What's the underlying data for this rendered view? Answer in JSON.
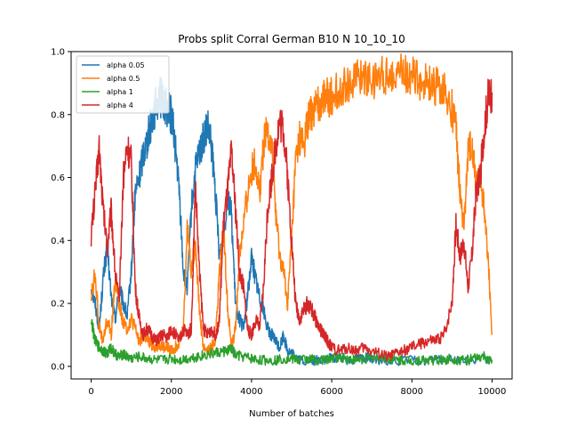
{
  "chart_data": {
    "type": "line",
    "title": "Probs split Corral German B10 N 10_10_10",
    "xlabel": "Number of batches",
    "ylabel": "",
    "xlim": [
      -500,
      10500
    ],
    "ylim": [
      -0.04,
      1.0
    ],
    "x_ticks": [
      0,
      2000,
      4000,
      6000,
      8000,
      10000
    ],
    "y_ticks": [
      0.0,
      0.2,
      0.4,
      0.6,
      0.8,
      1.0
    ],
    "x_tick_labels": [
      "0",
      "2000",
      "4000",
      "6000",
      "8000",
      "10000"
    ],
    "y_tick_labels": [
      "0.0",
      "0.2",
      "0.4",
      "0.6",
      "0.8",
      "1.0"
    ],
    "grid": false,
    "legend_position": "top-left",
    "series": [
      {
        "name": "alpha 0.05",
        "color": "#1f77b4",
        "points": [
          [
            0,
            0.25
          ],
          [
            100,
            0.2
          ],
          [
            200,
            0.12
          ],
          [
            300,
            0.28
          ],
          [
            400,
            0.38
          ],
          [
            500,
            0.22
          ],
          [
            600,
            0.15
          ],
          [
            700,
            0.25
          ],
          [
            800,
            0.2
          ],
          [
            900,
            0.16
          ],
          [
            1000,
            0.3
          ],
          [
            1100,
            0.55
          ],
          [
            1200,
            0.6
          ],
          [
            1300,
            0.68
          ],
          [
            1400,
            0.72
          ],
          [
            1500,
            0.78
          ],
          [
            1600,
            0.82
          ],
          [
            1700,
            0.86
          ],
          [
            1800,
            0.84
          ],
          [
            1900,
            0.82
          ],
          [
            2000,
            0.8
          ],
          [
            2100,
            0.7
          ],
          [
            2200,
            0.55
          ],
          [
            2300,
            0.3
          ],
          [
            2400,
            0.25
          ],
          [
            2500,
            0.5
          ],
          [
            2600,
            0.62
          ],
          [
            2700,
            0.68
          ],
          [
            2800,
            0.72
          ],
          [
            2900,
            0.76
          ],
          [
            3000,
            0.7
          ],
          [
            3100,
            0.55
          ],
          [
            3200,
            0.35
          ],
          [
            3300,
            0.4
          ],
          [
            3400,
            0.55
          ],
          [
            3500,
            0.48
          ],
          [
            3600,
            0.2
          ],
          [
            3700,
            0.15
          ],
          [
            3800,
            0.12
          ],
          [
            3900,
            0.22
          ],
          [
            4000,
            0.35
          ],
          [
            4100,
            0.28
          ],
          [
            4200,
            0.22
          ],
          [
            4300,
            0.18
          ],
          [
            4400,
            0.12
          ],
          [
            4500,
            0.1
          ],
          [
            4600,
            0.08
          ],
          [
            4700,
            0.06
          ],
          [
            4800,
            0.1
          ],
          [
            4900,
            0.05
          ],
          [
            5000,
            0.04
          ],
          [
            5100,
            0.03
          ],
          [
            5200,
            0.02
          ],
          [
            5400,
            0.015
          ],
          [
            5600,
            0.02
          ],
          [
            5800,
            0.02
          ],
          [
            6000,
            0.025
          ],
          [
            6200,
            0.03
          ],
          [
            6400,
            0.02
          ],
          [
            6600,
            0.025
          ],
          [
            6800,
            0.03
          ],
          [
            7000,
            0.02
          ],
          [
            7500,
            0.02
          ],
          [
            8000,
            0.018
          ],
          [
            8500,
            0.02
          ],
          [
            9000,
            0.02
          ],
          [
            9500,
            0.02
          ],
          [
            10000,
            0.02
          ]
        ]
      },
      {
        "name": "alpha 0.5",
        "color": "#ff7f0e",
        "points": [
          [
            0,
            0.22
          ],
          [
            100,
            0.3
          ],
          [
            200,
            0.12
          ],
          [
            300,
            0.08
          ],
          [
            400,
            0.15
          ],
          [
            500,
            0.1
          ],
          [
            600,
            0.28
          ],
          [
            700,
            0.2
          ],
          [
            800,
            0.14
          ],
          [
            900,
            0.12
          ],
          [
            1000,
            0.15
          ],
          [
            1100,
            0.12
          ],
          [
            1200,
            0.08
          ],
          [
            1300,
            0.1
          ],
          [
            1400,
            0.08
          ],
          [
            1500,
            0.07
          ],
          [
            1600,
            0.06
          ],
          [
            1700,
            0.07
          ],
          [
            1800,
            0.06
          ],
          [
            1900,
            0.06
          ],
          [
            2000,
            0.05
          ],
          [
            2100,
            0.06
          ],
          [
            2200,
            0.08
          ],
          [
            2300,
            0.12
          ],
          [
            2400,
            0.45
          ],
          [
            2500,
            0.3
          ],
          [
            2600,
            0.4
          ],
          [
            2700,
            0.18
          ],
          [
            2800,
            0.06
          ],
          [
            2900,
            0.05
          ],
          [
            3000,
            0.06
          ],
          [
            3100,
            0.08
          ],
          [
            3200,
            0.3
          ],
          [
            3300,
            0.45
          ],
          [
            3400,
            0.2
          ],
          [
            3500,
            0.06
          ],
          [
            3600,
            0.12
          ],
          [
            3700,
            0.35
          ],
          [
            3800,
            0.45
          ],
          [
            3900,
            0.55
          ],
          [
            4000,
            0.62
          ],
          [
            4100,
            0.65
          ],
          [
            4200,
            0.55
          ],
          [
            4300,
            0.7
          ],
          [
            4400,
            0.75
          ],
          [
            4500,
            0.7
          ],
          [
            4600,
            0.5
          ],
          [
            4700,
            0.35
          ],
          [
            4800,
            0.3
          ],
          [
            4900,
            0.2
          ],
          [
            5000,
            0.4
          ],
          [
            5100,
            0.65
          ],
          [
            5200,
            0.72
          ],
          [
            5300,
            0.7
          ],
          [
            5400,
            0.78
          ],
          [
            5500,
            0.8
          ],
          [
            5600,
            0.82
          ],
          [
            5700,
            0.84
          ],
          [
            5800,
            0.86
          ],
          [
            5900,
            0.85
          ],
          [
            6000,
            0.86
          ],
          [
            6200,
            0.88
          ],
          [
            6400,
            0.9
          ],
          [
            6600,
            0.91
          ],
          [
            6800,
            0.92
          ],
          [
            7000,
            0.91
          ],
          [
            7200,
            0.92
          ],
          [
            7400,
            0.93
          ],
          [
            7600,
            0.94
          ],
          [
            7800,
            0.93
          ],
          [
            8000,
            0.92
          ],
          [
            8200,
            0.91
          ],
          [
            8400,
            0.9
          ],
          [
            8600,
            0.89
          ],
          [
            8800,
            0.87
          ],
          [
            9000,
            0.82
          ],
          [
            9100,
            0.75
          ],
          [
            9200,
            0.55
          ],
          [
            9300,
            0.45
          ],
          [
            9400,
            0.68
          ],
          [
            9500,
            0.72
          ],
          [
            9600,
            0.58
          ],
          [
            9700,
            0.62
          ],
          [
            9800,
            0.5
          ],
          [
            9900,
            0.35
          ],
          [
            10000,
            0.1
          ]
        ]
      },
      {
        "name": "alpha 1",
        "color": "#2ca02c",
        "points": [
          [
            0,
            0.15
          ],
          [
            100,
            0.08
          ],
          [
            200,
            0.06
          ],
          [
            300,
            0.05
          ],
          [
            400,
            0.04
          ],
          [
            500,
            0.06
          ],
          [
            600,
            0.04
          ],
          [
            700,
            0.03
          ],
          [
            800,
            0.04
          ],
          [
            900,
            0.03
          ],
          [
            1000,
            0.025
          ],
          [
            1200,
            0.03
          ],
          [
            1400,
            0.025
          ],
          [
            1600,
            0.02
          ],
          [
            1800,
            0.02
          ],
          [
            2000,
            0.025
          ],
          [
            2200,
            0.02
          ],
          [
            2400,
            0.025
          ],
          [
            2600,
            0.03
          ],
          [
            2800,
            0.035
          ],
          [
            3000,
            0.04
          ],
          [
            3200,
            0.045
          ],
          [
            3400,
            0.05
          ],
          [
            3500,
            0.055
          ],
          [
            3600,
            0.035
          ],
          [
            3800,
            0.03
          ],
          [
            4000,
            0.025
          ],
          [
            4200,
            0.02
          ],
          [
            4400,
            0.02
          ],
          [
            4600,
            0.02
          ],
          [
            4800,
            0.025
          ],
          [
            5000,
            0.025
          ],
          [
            5200,
            0.02
          ],
          [
            5400,
            0.025
          ],
          [
            5600,
            0.02
          ],
          [
            5800,
            0.02
          ],
          [
            6000,
            0.025
          ],
          [
            6200,
            0.03
          ],
          [
            6400,
            0.025
          ],
          [
            6600,
            0.02
          ],
          [
            6800,
            0.025
          ],
          [
            7000,
            0.025
          ],
          [
            7200,
            0.03
          ],
          [
            7400,
            0.025
          ],
          [
            7600,
            0.02
          ],
          [
            7800,
            0.02
          ],
          [
            8000,
            0.018
          ],
          [
            8200,
            0.02
          ],
          [
            8400,
            0.02
          ],
          [
            8600,
            0.02
          ],
          [
            8800,
            0.02
          ],
          [
            9000,
            0.025
          ],
          [
            9200,
            0.02
          ],
          [
            9400,
            0.02
          ],
          [
            9600,
            0.025
          ],
          [
            9800,
            0.03
          ],
          [
            10000,
            0.02
          ]
        ]
      },
      {
        "name": "alpha 4",
        "color": "#d62728",
        "points": [
          [
            0,
            0.42
          ],
          [
            100,
            0.55
          ],
          [
            200,
            0.7
          ],
          [
            300,
            0.5
          ],
          [
            400,
            0.38
          ],
          [
            500,
            0.5
          ],
          [
            600,
            0.3
          ],
          [
            700,
            0.2
          ],
          [
            800,
            0.6
          ],
          [
            900,
            0.7
          ],
          [
            1000,
            0.65
          ],
          [
            1100,
            0.25
          ],
          [
            1200,
            0.15
          ],
          [
            1300,
            0.1
          ],
          [
            1400,
            0.12
          ],
          [
            1500,
            0.1
          ],
          [
            1600,
            0.08
          ],
          [
            1700,
            0.09
          ],
          [
            1800,
            0.1
          ],
          [
            1900,
            0.09
          ],
          [
            2000,
            0.12
          ],
          [
            2100,
            0.1
          ],
          [
            2200,
            0.08
          ],
          [
            2300,
            0.12
          ],
          [
            2400,
            0.1
          ],
          [
            2500,
            0.12
          ],
          [
            2600,
            0.58
          ],
          [
            2700,
            0.3
          ],
          [
            2800,
            0.12
          ],
          [
            2900,
            0.1
          ],
          [
            3000,
            0.12
          ],
          [
            3100,
            0.1
          ],
          [
            3200,
            0.15
          ],
          [
            3300,
            0.45
          ],
          [
            3400,
            0.55
          ],
          [
            3500,
            0.68
          ],
          [
            3600,
            0.5
          ],
          [
            3700,
            0.3
          ],
          [
            3800,
            0.25
          ],
          [
            3900,
            0.12
          ],
          [
            4000,
            0.1
          ],
          [
            4100,
            0.15
          ],
          [
            4200,
            0.12
          ],
          [
            4300,
            0.25
          ],
          [
            4400,
            0.5
          ],
          [
            4500,
            0.6
          ],
          [
            4600,
            0.7
          ],
          [
            4700,
            0.78
          ],
          [
            4800,
            0.75
          ],
          [
            4900,
            0.6
          ],
          [
            5000,
            0.4
          ],
          [
            5100,
            0.2
          ],
          [
            5200,
            0.15
          ],
          [
            5300,
            0.18
          ],
          [
            5400,
            0.2
          ],
          [
            5500,
            0.18
          ],
          [
            5600,
            0.15
          ],
          [
            5700,
            0.12
          ],
          [
            5800,
            0.1
          ],
          [
            5900,
            0.08
          ],
          [
            6000,
            0.06
          ],
          [
            6200,
            0.05
          ],
          [
            6400,
            0.06
          ],
          [
            6600,
            0.05
          ],
          [
            6800,
            0.06
          ],
          [
            7000,
            0.05
          ],
          [
            7200,
            0.04
          ],
          [
            7400,
            0.03
          ],
          [
            7600,
            0.04
          ],
          [
            7800,
            0.05
          ],
          [
            8000,
            0.06
          ],
          [
            8200,
            0.07
          ],
          [
            8400,
            0.08
          ],
          [
            8600,
            0.08
          ],
          [
            8800,
            0.1
          ],
          [
            9000,
            0.2
          ],
          [
            9100,
            0.45
          ],
          [
            9200,
            0.35
          ],
          [
            9300,
            0.4
          ],
          [
            9400,
            0.25
          ],
          [
            9500,
            0.35
          ],
          [
            9600,
            0.55
          ],
          [
            9700,
            0.6
          ],
          [
            9800,
            0.75
          ],
          [
            9900,
            0.85
          ],
          [
            10000,
            0.87
          ]
        ]
      }
    ]
  }
}
